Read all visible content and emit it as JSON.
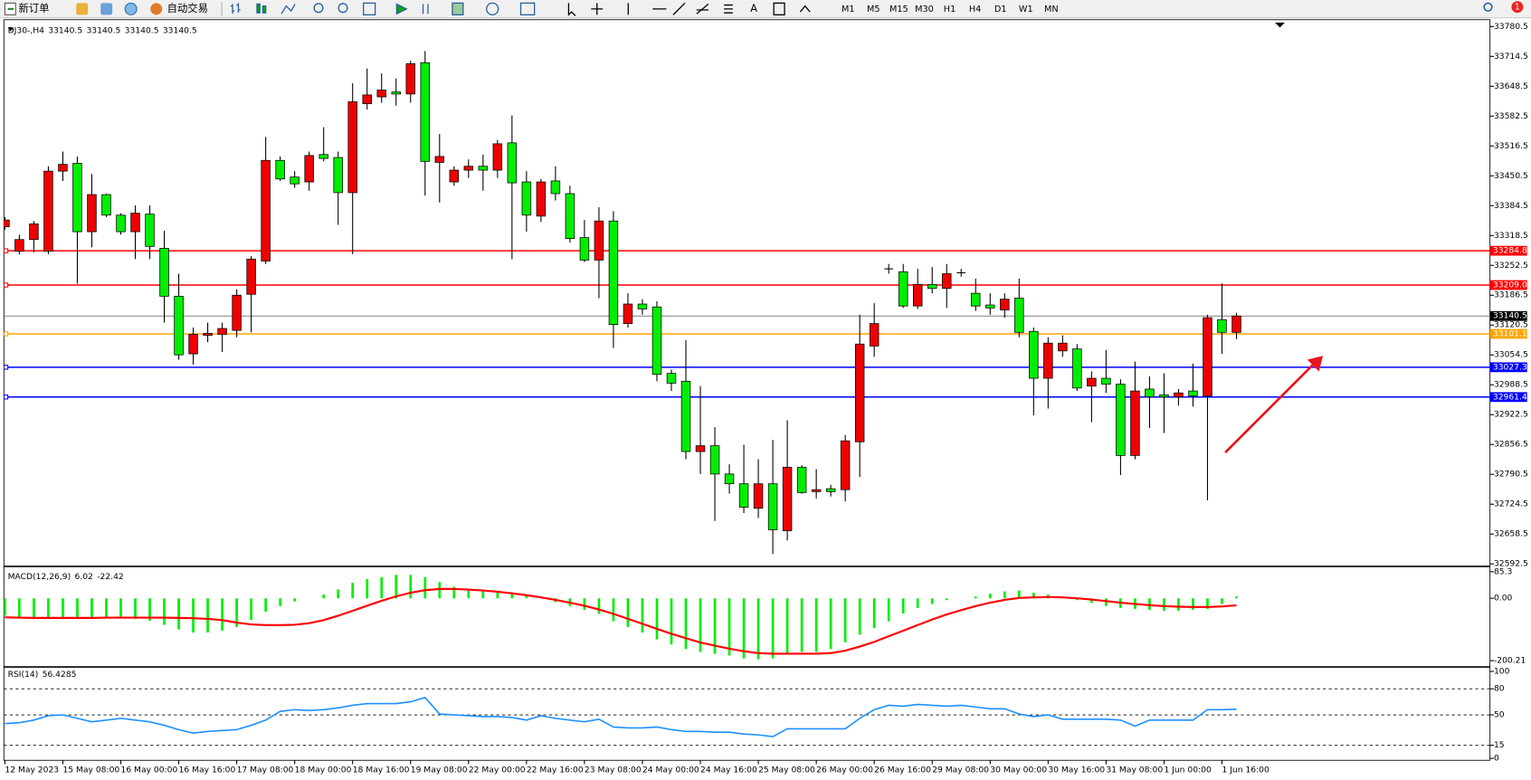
{
  "toolbar": {
    "new_order": "新订单",
    "auto_trading": "自动交易",
    "timeframes": [
      "M1",
      "M5",
      "M15",
      "M30",
      "H1",
      "H4",
      "D1",
      "W1",
      "MN"
    ],
    "notifications": 1
  },
  "chart_data": [
    {
      "type": "candlestick",
      "title": "DJ30-,H4",
      "header_values": [
        33140.5,
        33140.5,
        33140.5,
        33140.5
      ],
      "categories": [
        "12 May 2023",
        null,
        null,
        null,
        "15 May 08:00",
        null,
        null,
        null,
        "16 May 00:00",
        null,
        null,
        null,
        "16 May 16:00",
        null,
        null,
        null,
        "17 May 08:00",
        null,
        null,
        null,
        "18 May 00:00",
        null,
        null,
        null,
        "18 May 16:00",
        null,
        null,
        null,
        "19 May 08:00",
        null,
        null,
        null,
        "22 May 00:00",
        null,
        null,
        null,
        "22 May 16:00",
        null,
        null,
        null,
        "23 May 08:00",
        null,
        null,
        null,
        "24 May 00:00",
        null,
        null,
        null,
        "24 May 16:00",
        null,
        null,
        null,
        "25 May 08:00",
        null,
        null,
        null,
        "26 May 00:00",
        null,
        null,
        null,
        "26 May 16:00",
        null,
        null,
        null,
        "29 May 08:00",
        null,
        null,
        null,
        "30 May 00:00",
        null,
        null,
        null,
        "30 May 16:00",
        null,
        null,
        null,
        "31 May 08:00",
        null,
        null,
        null,
        "1 Jun 00:00",
        null,
        null,
        null,
        "1 Jun 16:00",
        null
      ],
      "open": [
        33337.7,
        33283.7,
        33309.6,
        33283.7,
        33460.8,
        33478.1,
        33326.9,
        33409,
        33363.6,
        33326.9,
        33365.8,
        33290.2,
        33184.3,
        33056.9,
        33097.9,
        33100.1,
        33108.7,
        33188.6,
        33262.1,
        33484.6,
        33447.8,
        33437,
        33497.5,
        33491,
        33413.3,
        33609.8,
        33625,
        33635.8,
        33631.4,
        33700.6,
        33480.2,
        33437,
        33463,
        33471.6,
        33463,
        33523.4,
        33437,
        33361.4,
        33439.2,
        33411.1,
        33313.9,
        33264.2,
        33350.6,
        33123.8,
        33167,
        33160.6,
        33013.7,
        32996.4,
        32840.9,
        32853.8,
        32791.2,
        32769.6,
        32715.6,
        32769.6,
        32665.9,
        32806.3,
        32752.3,
        32758.8,
        32756.6,
        32862.5,
        33074.2,
        33244.8,
        33238.3,
        33162.7,
        33210.2,
        33201.6,
        33236.2,
        33190.8,
        33164.9,
        33154.1,
        33180,
        33106.6,
        33002.9,
        33063.4,
        33067.7,
        32985.6,
        33002.9,
        32989.9,
        32832.2,
        32979.1,
        32966.2,
        32961.8,
        32974.8,
        32964,
        33132.5,
        33104.4
      ],
      "high": [
        33359.3,
        33320.4,
        33350.6,
        33471.6,
        33504,
        33493.2,
        33454.3,
        33411.1,
        33367.9,
        33385.2,
        33385.2,
        33329,
        33234,
        33115.2,
        33126,
        33126,
        33199.4,
        33272.9,
        33536.4,
        33493.2,
        33460.8,
        33504,
        33558,
        33504,
        33655.2,
        33687.6,
        33676.8,
        33666,
        33704.9,
        33726.5,
        33542.9,
        33471.6,
        33486.7,
        33497.5,
        33529.9,
        33583.9,
        33460.8,
        33443.5,
        33471.6,
        33428.4,
        33352.8,
        33380.9,
        33372.2,
        33190.8,
        33177.8,
        33173.5,
        33022.3,
        33087.1,
        32985.6,
        32894.9,
        32812.8,
        32856,
        32823.6,
        32866.8,
        32910,
        32810.6,
        32802,
        32767.4,
        32877.6,
        33143.3,
        33169.2,
        33255.6,
        33255.6,
        33244.8,
        33249.1,
        33255.6,
        33244.8,
        33223.2,
        33190.8,
        33190.8,
        33223.2,
        33115.2,
        33093.6,
        33097.9,
        33078.5,
        33018,
        33065.5,
        33000.7,
        33039.6,
        33007.2,
        33013.7,
        32979.1,
        33035.3,
        33143.3,
        33212.4,
        33147.6
      ],
      "low": [
        33331.2,
        33277.2,
        33281.5,
        33277.2,
        33439.2,
        33212.4,
        33292.3,
        33359.3,
        33320.4,
        33266.4,
        33266.4,
        33126,
        33043.9,
        33033.1,
        33082.8,
        33061.2,
        33093.6,
        33104.4,
        33255.6,
        33439.2,
        33424.1,
        33417.6,
        33482.4,
        33342,
        33277.2,
        33596.9,
        33612,
        33605.5,
        33612,
        33406.8,
        33391.7,
        33428.4,
        33445.7,
        33417.6,
        33445.7,
        33266.4,
        33326.9,
        33348.5,
        33396,
        33303.1,
        33259.9,
        33180,
        33069.8,
        33115.2,
        33143.3,
        32996.4,
        32974.8,
        32823.6,
        32791.2,
        32687.5,
        32748,
        32704.8,
        32694,
        32614.1,
        32644.3,
        32748,
        32737.2,
        32741.5,
        32730.7,
        32784.7,
        33050.4,
        33234,
        33158.4,
        33156.2,
        33190.8,
        33158.4,
        33227.5,
        33151.9,
        33143.3,
        33136.8,
        33093.6,
        32920.8,
        32935.9,
        33050.4,
        32974.8,
        32905.7,
        32970.5,
        32789,
        32823.6,
        32892.7,
        32881.9,
        32942.4,
        32940.2,
        32732.9,
        33056.9,
        33089.3
      ],
      "close": [
        33352.8,
        33309.6,
        33344.2,
        33460.8,
        33475.9,
        33326.9,
        33409,
        33363.6,
        33326.9,
        33367.9,
        33294.5,
        33184.3,
        33054.7,
        33100.1,
        33102.2,
        33113,
        33186.5,
        33266.4,
        33484.6,
        33443.5,
        33432.7,
        33495.4,
        33488.9,
        33413.3,
        33614.2,
        33629.3,
        33640.1,
        33631.4,
        33698.4,
        33482.4,
        33493.2,
        33463,
        33471.6,
        33463,
        33521.3,
        33434.9,
        33363.6,
        33437,
        33411.1,
        33311.8,
        33264.2,
        33350.6,
        33121.7,
        33167,
        33156.2,
        33011.5,
        32992.1,
        32840.9,
        32853.8,
        32791.2,
        32769.6,
        32717.8,
        32769.6,
        32668.1,
        32806.3,
        32750.2,
        32756.6,
        32752.3,
        32864.6,
        33078.5,
        33123.8,
        33244.8,
        33162.7,
        33210.2,
        33201.6,
        33234,
        33236.2,
        33162.7,
        33158.4,
        33177.8,
        33104.4,
        33002.9,
        33080.6,
        33080.6,
        32981.3,
        33002.9,
        32989.9,
        32832.2,
        32974.8,
        32961.8,
        32961.8,
        32970.5,
        32964,
        33136.8,
        33104.4,
        33140.5
      ],
      "up_color": "#ee0000",
      "down_color": "#00ee00",
      "ylim": [
        32592.5,
        33780.5
      ],
      "yticks": [
        33780.5,
        33714.5,
        33648.5,
        33582.5,
        33516.5,
        33450.5,
        33384.5,
        33318.5,
        33252.5,
        33186.5,
        33120.5,
        33054.5,
        32988.5,
        32922.5,
        32856.5,
        32790.5,
        32724.5,
        32658.5,
        32592.5
      ],
      "levels": [
        {
          "value": 33284.8,
          "color": "#ff0000"
        },
        {
          "value": 33209.0,
          "label": "33209.0",
          "color": "#ff0000"
        },
        {
          "value": 33101.1,
          "color": "#ffa500"
        },
        {
          "value": 33027.3,
          "color": "#0000ff"
        },
        {
          "value": 32961.4,
          "color": "#0000ff"
        }
      ],
      "bid": 33140.5
    },
    {
      "type": "macd",
      "title": "MACD(12,26,9)",
      "histogram": {
        "color": "#00ee00",
        "values": [
          -55,
          -60,
          -63,
          -66,
          -66,
          -63,
          -60,
          -60,
          -63,
          -66,
          -72,
          -85,
          -100,
          -110,
          -110,
          -104,
          -92,
          -70,
          -43,
          -25,
          -10,
          0,
          12,
          28,
          50,
          62,
          68,
          75,
          75,
          68,
          52,
          37,
          28,
          22,
          18,
          18,
          10,
          0,
          -12,
          -25,
          -37,
          -50,
          -74,
          -92,
          -110,
          -132,
          -148,
          -163,
          -172,
          -178,
          -184,
          -193,
          -196,
          -193,
          -178,
          -172,
          -172,
          -163,
          -141,
          -117,
          -95,
          -74,
          -49,
          -31,
          -18,
          -6,
          0,
          6,
          15,
          22,
          25,
          18,
          12,
          6,
          -6,
          -15,
          -25,
          -31,
          -34,
          -37,
          -40,
          -40,
          -37,
          -34,
          -18,
          6.02
        ]
      },
      "signal": {
        "color": "#ff0000",
        "values": [
          -61,
          -62,
          -63,
          -63,
          -63,
          -63,
          -63,
          -62,
          -62,
          -62,
          -62,
          -62,
          -63,
          -64,
          -66,
          -70,
          -78,
          -84,
          -86,
          -86,
          -85,
          -80,
          -70,
          -56,
          -40,
          -24,
          -8,
          6,
          18,
          26,
          30,
          30,
          28,
          25,
          21,
          16,
          10,
          3,
          -5,
          -14,
          -24,
          -36,
          -50,
          -66,
          -82,
          -98,
          -114,
          -128,
          -142,
          -152,
          -162,
          -170,
          -176,
          -178,
          -178,
          -178,
          -178,
          -176,
          -168,
          -155,
          -140,
          -122,
          -104,
          -86,
          -68,
          -52,
          -38,
          -25,
          -14,
          -5,
          1,
          3,
          4,
          3,
          0,
          -4,
          -9,
          -14,
          -18,
          -22,
          -25,
          -27,
          -28,
          -28,
          -26,
          -22.42
        ]
      },
      "ylim": [
        -200.21,
        85.3
      ],
      "yticks": [
        85.3,
        {
          "value": 0,
          "label": "0.00"
        },
        -200.21
      ]
    },
    {
      "type": "rsi",
      "title": "RSI(14)",
      "color": "#1e90ff",
      "values": [
        40,
        41,
        44,
        49,
        50,
        46,
        42,
        44,
        46,
        44,
        42,
        38,
        33,
        29,
        31,
        32,
        33,
        38,
        44,
        54,
        56,
        55,
        56,
        58,
        61,
        63,
        63,
        63,
        65,
        70,
        51,
        50,
        49,
        48,
        48,
        47,
        44,
        49,
        46,
        44,
        42,
        45,
        36,
        35,
        35,
        36,
        33,
        31,
        31,
        30,
        30,
        28,
        27,
        25,
        34,
        34,
        34,
        34,
        34,
        46,
        56,
        61,
        60,
        62,
        61,
        60,
        61,
        59,
        57,
        57,
        51,
        48,
        50,
        45,
        45,
        45,
        45,
        44,
        37,
        44,
        44,
        44,
        44,
        56,
        56,
        56.4285
      ],
      "ylim": [
        0,
        100
      ],
      "yticks": [
        100,
        80,
        50,
        15,
        0
      ]
    }
  ]
}
